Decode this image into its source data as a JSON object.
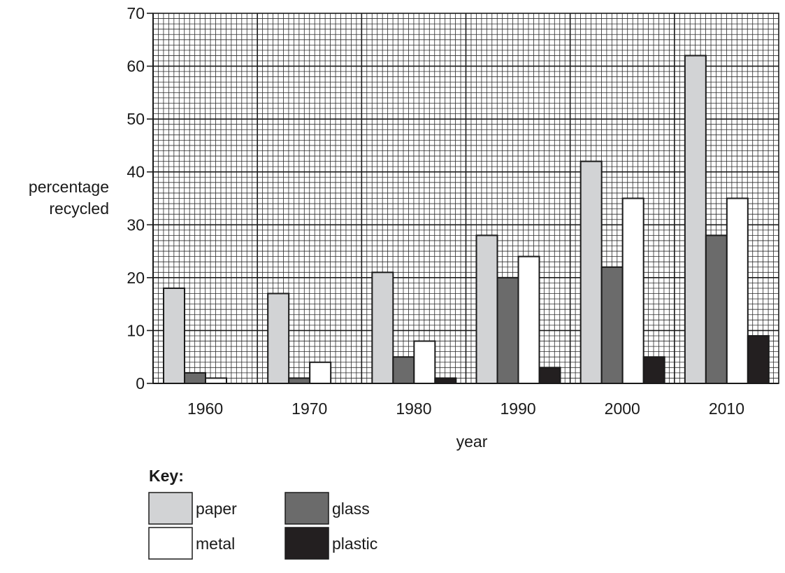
{
  "chart_data": {
    "type": "bar",
    "title": "",
    "xlabel": "year",
    "ylabel": [
      "percentage",
      "recycled"
    ],
    "categories": [
      "1960",
      "1970",
      "1980",
      "1990",
      "2000",
      "2010"
    ],
    "ylim": [
      0,
      70
    ],
    "yticks": [
      "0",
      "10",
      "20",
      "30",
      "40",
      "50",
      "60",
      "70"
    ],
    "grid": true,
    "legend_position": "bottom-left",
    "legend_title": "Key:",
    "series": [
      {
        "name": "paper",
        "color": "#d2d3d5",
        "values": [
          18,
          17,
          21,
          28,
          42,
          62
        ]
      },
      {
        "name": "glass",
        "color": "#6b6b6b",
        "values": [
          2,
          1,
          5,
          20,
          22,
          28
        ]
      },
      {
        "name": "metal",
        "color": "#ffffff",
        "values": [
          1,
          4,
          8,
          24,
          35,
          35
        ]
      },
      {
        "name": "plastic",
        "color": "#231f20",
        "values": [
          0,
          0,
          1,
          3,
          5,
          9
        ]
      }
    ]
  }
}
